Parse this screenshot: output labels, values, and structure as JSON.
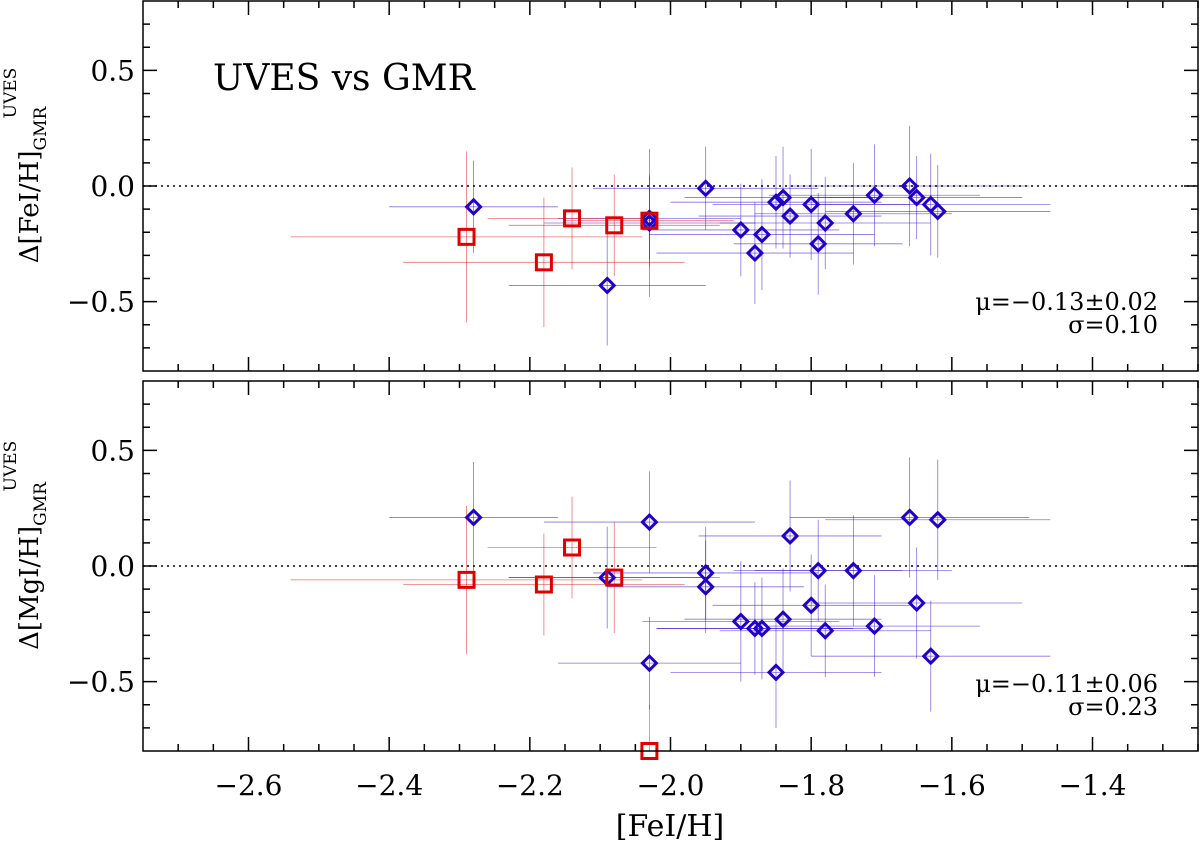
{
  "chart_data": [
    {
      "type": "scatter",
      "title": "UVES vs GMR",
      "xlabel": "[FeI/H]",
      "ylabel": "Δ[FeI/H]",
      "ylabel_sup": "UVES",
      "ylabel_sub": "GMR",
      "xlim": [
        -2.75,
        -1.25
      ],
      "ylim": [
        -0.8,
        0.8
      ],
      "yticks": [
        -0.5,
        0.0,
        0.5
      ],
      "ytick_labels": [
        "−0.5",
        "0.0",
        "0.5"
      ],
      "reference_line": 0.0,
      "stats_mu": "μ=−0.13±0.02",
      "stats_sigma": "σ=0.10",
      "series": [
        {
          "name": "diamond",
          "marker": "diamond",
          "color": "#2200cc",
          "points": [
            {
              "x": -2.28,
              "y": -0.09,
              "ex": 0.12,
              "ey": 0.2
            },
            {
              "x": -2.09,
              "y": -0.43,
              "ex": 0.14,
              "ey": 0.26
            },
            {
              "x": -2.03,
              "y": -0.16,
              "ex": 0.15,
              "ey": 0.32
            },
            {
              "x": -2.03,
              "y": -0.14,
              "ex": 0.13,
              "ey": 0.18
            },
            {
              "x": -1.95,
              "y": -0.01,
              "ex": 0.16,
              "ey": 0.18
            },
            {
              "x": -1.9,
              "y": -0.19,
              "ex": 0.14,
              "ey": 0.2
            },
            {
              "x": -1.88,
              "y": -0.29,
              "ex": 0.14,
              "ey": 0.22
            },
            {
              "x": -1.87,
              "y": -0.21,
              "ex": 0.16,
              "ey": 0.24
            },
            {
              "x": -1.85,
              "y": -0.07,
              "ex": 0.15,
              "ey": 0.2
            },
            {
              "x": -1.84,
              "y": -0.05,
              "ex": 0.14,
              "ey": 0.22
            },
            {
              "x": -1.83,
              "y": -0.13,
              "ex": 0.13,
              "ey": 0.18
            },
            {
              "x": -1.8,
              "y": -0.08,
              "ex": 0.14,
              "ey": 0.24
            },
            {
              "x": -1.79,
              "y": -0.25,
              "ex": 0.12,
              "ey": 0.22
            },
            {
              "x": -1.78,
              "y": -0.16,
              "ex": 0.15,
              "ey": 0.2
            },
            {
              "x": -1.74,
              "y": -0.12,
              "ex": 0.14,
              "ey": 0.22
            },
            {
              "x": -1.71,
              "y": -0.04,
              "ex": 0.15,
              "ey": 0.22
            },
            {
              "x": -1.66,
              "y": 0.0,
              "ex": 0.17,
              "ey": 0.26
            },
            {
              "x": -1.65,
              "y": -0.05,
              "ex": 0.15,
              "ey": 0.18
            },
            {
              "x": -1.63,
              "y": -0.08,
              "ex": 0.17,
              "ey": 0.22
            },
            {
              "x": -1.62,
              "y": -0.11,
              "ex": 0.16,
              "ey": 0.2
            }
          ]
        },
        {
          "name": "square",
          "marker": "square",
          "color": "#e00000",
          "points": [
            {
              "x": -2.29,
              "y": -0.22,
              "ex": 0.25,
              "ey": 0.37
            },
            {
              "x": -2.18,
              "y": -0.33,
              "ex": 0.2,
              "ey": 0.28
            },
            {
              "x": -2.14,
              "y": -0.14,
              "ex": 0.12,
              "ey": 0.22
            },
            {
              "x": -2.08,
              "y": -0.17,
              "ex": 0.15,
              "ey": 0.22
            },
            {
              "x": -2.03,
              "y": -0.15,
              "ex": 0.12,
              "ey": 0.2
            }
          ]
        }
      ]
    },
    {
      "type": "scatter",
      "xlabel": "[FeI/H]",
      "ylabel": "Δ[MgI/H]",
      "ylabel_sup": "UVES",
      "ylabel_sub": "GMR",
      "xlim": [
        -2.75,
        -1.25
      ],
      "ylim": [
        -0.8,
        0.8
      ],
      "xticks": [
        -2.6,
        -2.4,
        -2.2,
        -2.0,
        -1.8,
        -1.6,
        -1.4
      ],
      "xtick_labels": [
        "−2.6",
        "−2.4",
        "−2.2",
        "−2.0",
        "−1.8",
        "−1.6",
        "−1.4"
      ],
      "yticks": [
        -0.5,
        0.0,
        0.5
      ],
      "ytick_labels": [
        "−0.5",
        "0.0",
        "0.5"
      ],
      "reference_line": 0.0,
      "stats_mu": "μ=−0.11±0.06",
      "stats_sigma": "σ=0.23",
      "series": [
        {
          "name": "diamond",
          "marker": "diamond",
          "color": "#2200cc",
          "points": [
            {
              "x": -2.28,
              "y": 0.21,
              "ex": 0.12,
              "ey": 0.24
            },
            {
              "x": -2.09,
              "y": -0.05,
              "ex": 0.14,
              "ey": 0.22
            },
            {
              "x": -2.03,
              "y": 0.19,
              "ex": 0.15,
              "ey": 0.22
            },
            {
              "x": -2.03,
              "y": -0.42,
              "ex": 0.13,
              "ey": 0.2
            },
            {
              "x": -1.95,
              "y": -0.03,
              "ex": 0.16,
              "ey": 0.2
            },
            {
              "x": -1.95,
              "y": -0.09,
              "ex": 0.14,
              "ey": 0.2
            },
            {
              "x": -1.9,
              "y": -0.24,
              "ex": 0.14,
              "ey": 0.26
            },
            {
              "x": -1.88,
              "y": -0.27,
              "ex": 0.14,
              "ey": 0.2
            },
            {
              "x": -1.87,
              "y": -0.27,
              "ex": 0.15,
              "ey": 0.22
            },
            {
              "x": -1.85,
              "y": -0.46,
              "ex": 0.15,
              "ey": 0.24
            },
            {
              "x": -1.84,
              "y": -0.23,
              "ex": 0.14,
              "ey": 0.22
            },
            {
              "x": -1.83,
              "y": 0.13,
              "ex": 0.13,
              "ey": 0.24
            },
            {
              "x": -1.8,
              "y": -0.17,
              "ex": 0.14,
              "ey": 0.22
            },
            {
              "x": -1.79,
              "y": -0.02,
              "ex": 0.12,
              "ey": 0.22
            },
            {
              "x": -1.78,
              "y": -0.28,
              "ex": 0.15,
              "ey": 0.2
            },
            {
              "x": -1.74,
              "y": -0.02,
              "ex": 0.14,
              "ey": 0.24
            },
            {
              "x": -1.71,
              "y": -0.26,
              "ex": 0.15,
              "ey": 0.22
            },
            {
              "x": -1.66,
              "y": 0.21,
              "ex": 0.17,
              "ey": 0.26
            },
            {
              "x": -1.65,
              "y": -0.16,
              "ex": 0.15,
              "ey": 0.24
            },
            {
              "x": -1.63,
              "y": -0.39,
              "ex": 0.17,
              "ey": 0.24
            },
            {
              "x": -1.62,
              "y": 0.2,
              "ex": 0.16,
              "ey": 0.26
            }
          ]
        },
        {
          "name": "square",
          "marker": "square",
          "color": "#e00000",
          "points": [
            {
              "x": -2.29,
              "y": -0.06,
              "ex": 0.25,
              "ey": 0.32
            },
            {
              "x": -2.18,
              "y": -0.08,
              "ex": 0.2,
              "ey": 0.22
            },
            {
              "x": -2.14,
              "y": 0.08,
              "ex": 0.12,
              "ey": 0.22
            },
            {
              "x": -2.08,
              "y": -0.05,
              "ex": 0.15,
              "ey": 0.24
            },
            {
              "x": -2.03,
              "y": -0.8,
              "ex": 0.12,
              "ey": 0.2
            }
          ]
        }
      ]
    }
  ]
}
